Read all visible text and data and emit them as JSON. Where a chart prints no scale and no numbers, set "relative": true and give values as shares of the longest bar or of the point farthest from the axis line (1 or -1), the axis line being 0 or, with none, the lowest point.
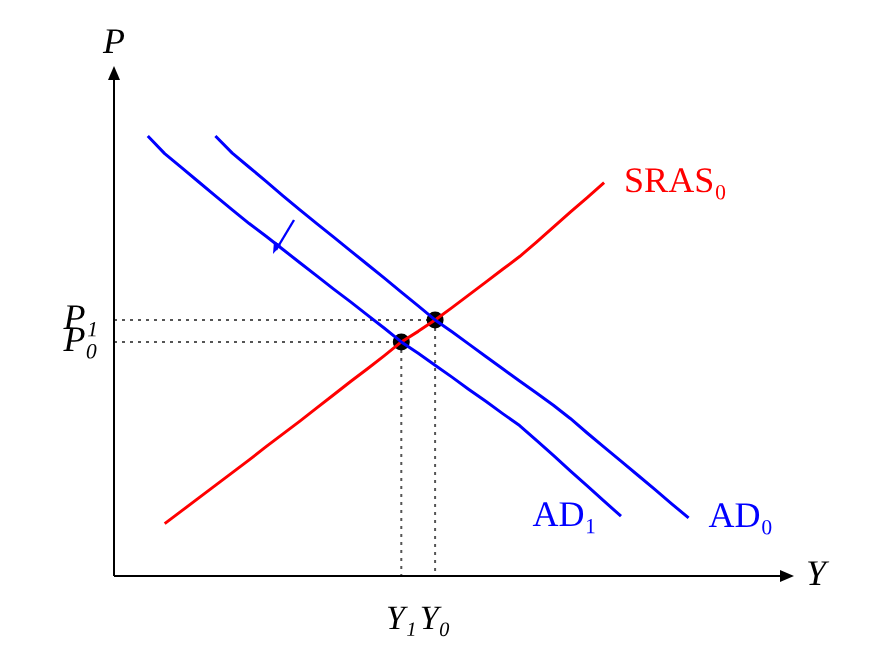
{
  "chart_data": {
    "type": "line",
    "relative": true,
    "xlabel": "Y",
    "ylabel": "P",
    "legend": false,
    "marker": "none",
    "categories": [
      null,
      null,
      null,
      null,
      null,
      null,
      null,
      null,
      null,
      null,
      null,
      null,
      null,
      null,
      null,
      null,
      null,
      "Y₁",
      null,
      "Y₀",
      null,
      null,
      null,
      null,
      null,
      null,
      null,
      null,
      null,
      null,
      null,
      null,
      null,
      null,
      null,
      null,
      null,
      null,
      null,
      null,
      null
    ],
    "series": [
      {
        "name": "AD₀",
        "color": "#0000ff",
        "values": [
          null,
          null,
          null,
          null,
          null,
          null,
          1.0,
          0.961,
          0.929,
          0.897,
          0.864,
          0.832,
          0.801,
          0.77,
          0.739,
          0.708,
          0.677,
          0.645,
          0.614,
          0.582,
          0.555,
          0.527,
          0.499,
          0.471,
          0.443,
          0.416,
          0.388,
          0.358,
          0.325,
          0.293,
          0.261,
          0.229,
          0.197,
          0.164,
          0.132,
          null,
          null,
          null,
          null,
          null,
          null
        ]
      },
      {
        "name": "AD₁",
        "color": "#0000ff",
        "values": [
          null,
          null,
          1.0,
          0.96,
          0.928,
          0.896,
          0.864,
          0.832,
          0.801,
          0.772,
          0.742,
          0.712,
          0.682,
          0.652,
          0.623,
          0.593,
          0.563,
          0.532,
          0.506,
          0.479,
          0.452,
          0.424,
          0.397,
          0.369,
          0.342,
          0.308,
          0.274,
          0.239,
          0.205,
          0.17,
          0.136,
          null,
          null,
          null,
          null,
          null,
          null,
          null,
          null,
          null,
          null
        ]
      },
      {
        "name": "SRAS₀",
        "color": "#ff0000",
        "values": [
          null,
          null,
          null,
          0.119,
          0.148,
          0.177,
          0.206,
          0.235,
          0.264,
          0.294,
          0.323,
          0.352,
          0.382,
          0.412,
          0.442,
          0.471,
          0.501,
          0.532,
          0.556,
          0.582,
          0.61,
          0.639,
          0.668,
          0.697,
          0.726,
          0.759,
          0.793,
          0.827,
          0.86,
          0.894,
          null,
          null,
          null,
          null,
          null,
          null,
          null,
          null,
          null,
          null,
          null
        ]
      },
      {
        "type": "scatter",
        "marker": "circle",
        "color": "#000000",
        "values": [
          null,
          null,
          null,
          null,
          null,
          null,
          null,
          null,
          null,
          null,
          null,
          null,
          null,
          null,
          null,
          null,
          null,
          0.532,
          null,
          0.582,
          null,
          null,
          null,
          null,
          null,
          null,
          null,
          null,
          null,
          null,
          null,
          null,
          null,
          null,
          null,
          null,
          null,
          null,
          null,
          null,
          null
        ]
      }
    ],
    "annotations": [
      "P₀",
      "P₁"
    ]
  }
}
